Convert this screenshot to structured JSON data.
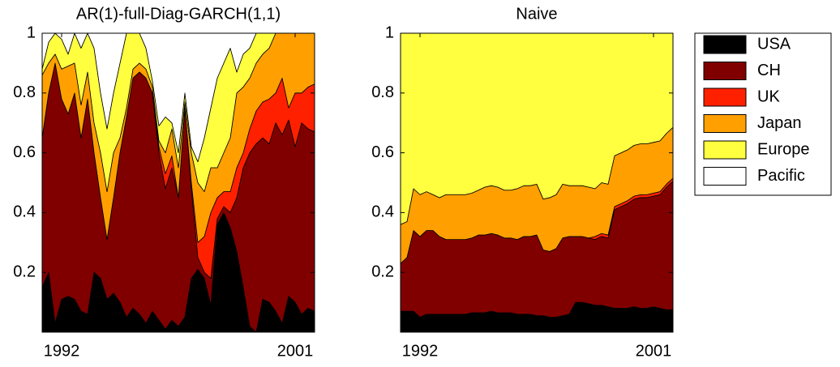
{
  "chart_data": [
    {
      "type": "stacked-area",
      "title": "AR(1)-full-Diag-GARCH(1,1)",
      "x": [
        1991.25,
        1991.5,
        1991.75,
        1992,
        1992.25,
        1992.5,
        1992.75,
        1993,
        1993.25,
        1993.5,
        1993.75,
        1994,
        1994.25,
        1994.5,
        1994.75,
        1995,
        1995.25,
        1995.5,
        1995.75,
        1996,
        1996.25,
        1996.5,
        1996.75,
        1997,
        1997.25,
        1997.5,
        1997.75,
        1998,
        1998.25,
        1998.5,
        1998.75,
        1999,
        1999.25,
        1999.5,
        1999.75,
        2000,
        2000.25,
        2000.5,
        2000.75,
        2001,
        2001.25,
        2001.5,
        2001.75
      ],
      "xlim": [
        1991.25,
        2001.75
      ],
      "xticks": [
        1992,
        2001
      ],
      "ylim": [
        0,
        1
      ],
      "yticks": [
        0.2,
        0.4,
        0.6,
        0.8,
        1
      ],
      "series": [
        {
          "name": "USA",
          "color": "#000000",
          "values": [
            0.15,
            0.2,
            0.03,
            0.11,
            0.12,
            0.11,
            0.07,
            0.06,
            0.2,
            0.18,
            0.11,
            0.13,
            0.1,
            0.05,
            0.08,
            0.06,
            0.03,
            0.07,
            0.04,
            0.01,
            0.04,
            0.02,
            0.05,
            0.18,
            0.21,
            0.18,
            0.09,
            0.36,
            0.4,
            0.35,
            0.27,
            0.15,
            0.02,
            0,
            0.11,
            0.1,
            0.07,
            0.03,
            0.12,
            0.1,
            0.06,
            0.08,
            0.07
          ]
        },
        {
          "name": "CH",
          "color": "#800000",
          "values": [
            0.5,
            0.6,
            0.87,
            0.67,
            0.61,
            0.69,
            0.58,
            0.72,
            0.4,
            0.27,
            0.2,
            0.32,
            0.5,
            0.67,
            0.77,
            0.81,
            0.82,
            0.73,
            0.56,
            0.47,
            0.51,
            0.43,
            0.7,
            0.3,
            0.04,
            0.02,
            0.09,
            0.02,
            0.02,
            0.05,
            0.18,
            0.4,
            0.58,
            0.63,
            0.54,
            0.53,
            0.63,
            0.63,
            0.59,
            0.52,
            0.64,
            0.6,
            0.6
          ]
        },
        {
          "name": "UK",
          "color": "#ff2000",
          "values": [
            0,
            0,
            0,
            0,
            0,
            0,
            0,
            0,
            0,
            0,
            0,
            0,
            0,
            0,
            0,
            0,
            0,
            0,
            0.02,
            0.05,
            0.04,
            0,
            0,
            0.02,
            0.05,
            0.12,
            0.22,
            0.07,
            0.05,
            0.07,
            0.1,
            0.05,
            0.08,
            0.11,
            0.12,
            0.15,
            0.1,
            0.19,
            0.04,
            0.18,
            0.1,
            0.14,
            0.16
          ]
        },
        {
          "name": "Japan",
          "color": "#ffa000",
          "values": [
            0.21,
            0.1,
            0.03,
            0.1,
            0.16,
            0.1,
            0.11,
            0.09,
            0.1,
            0.15,
            0.16,
            0.15,
            0.05,
            0.03,
            0.03,
            0.03,
            0.03,
            0.02,
            0.02,
            0.07,
            0.09,
            0.1,
            0.02,
            0.1,
            0.2,
            0.15,
            0.15,
            0.1,
            0.13,
            0.18,
            0.25,
            0.22,
            0.17,
            0.16,
            0.16,
            0.17,
            0.2,
            0.15,
            0.25,
            0.2,
            0.2,
            0.18,
            0.17
          ]
        },
        {
          "name": "Europe",
          "color": "#ffff40",
          "values": [
            0.02,
            0.07,
            0.07,
            0.1,
            0.04,
            0.1,
            0.19,
            0.13,
            0.25,
            0.2,
            0.21,
            0.2,
            0.25,
            0.25,
            0.12,
            0.1,
            0.07,
            0.02,
            0.05,
            0.12,
            0.02,
            0.05,
            0.03,
            0.02,
            0.07,
            0.18,
            0.2,
            0.3,
            0.3,
            0.3,
            0.07,
            0.11,
            0.1,
            0.1,
            0.07,
            0.05,
            0,
            0,
            0,
            0,
            0,
            0,
            0
          ]
        },
        {
          "name": "Pacific",
          "color": "#ffffff",
          "values": [
            0.12,
            0.03,
            0,
            0.02,
            0.07,
            0,
            0.05,
            0,
            0.05,
            0.2,
            0.32,
            0.2,
            0.1,
            0,
            0,
            0,
            0.05,
            0.16,
            0.31,
            0.28,
            0.3,
            0.4,
            0.2,
            0.38,
            0.43,
            0.35,
            0.25,
            0.15,
            0.1,
            0.05,
            0.13,
            0.07,
            0.05,
            0,
            0,
            0,
            0,
            0,
            0,
            0,
            0,
            0,
            0
          ]
        }
      ]
    },
    {
      "type": "stacked-area",
      "title": "Naive",
      "x": [
        1991.25,
        1991.5,
        1991.75,
        1992,
        1992.25,
        1992.5,
        1992.75,
        1993,
        1993.25,
        1993.5,
        1993.75,
        1994,
        1994.25,
        1994.5,
        1994.75,
        1995,
        1995.25,
        1995.5,
        1995.75,
        1996,
        1996.25,
        1996.5,
        1996.75,
        1997,
        1997.25,
        1997.5,
        1997.75,
        1998,
        1998.25,
        1998.5,
        1998.75,
        1999,
        1999.25,
        1999.5,
        1999.75,
        2000,
        2000.25,
        2000.5,
        2000.75,
        2001,
        2001.25,
        2001.5,
        2001.75
      ],
      "xlim": [
        1991.25,
        2001.75
      ],
      "xticks": [
        1992,
        2001
      ],
      "ylim": [
        0,
        1
      ],
      "yticks": [
        0.2,
        0.4,
        0.6,
        0.8,
        1
      ],
      "series": [
        {
          "color": "#000000",
          "values": [
            0.07,
            0.07,
            0.07,
            0.05,
            0.06,
            0.06,
            0.06,
            0.06,
            0.06,
            0.06,
            0.06,
            0.065,
            0.065,
            0.065,
            0.07,
            0.065,
            0.065,
            0.065,
            0.06,
            0.06,
            0.06,
            0.055,
            0.055,
            0.05,
            0.05,
            0.055,
            0.06,
            0.1,
            0.1,
            0.095,
            0.09,
            0.09,
            0.085,
            0.08,
            0.08,
            0.08,
            0.085,
            0.08,
            0.08,
            0.085,
            0.08,
            0.075,
            0.075
          ]
        },
        {
          "color": "#800000",
          "values": [
            0.16,
            0.18,
            0.27,
            0.27,
            0.28,
            0.28,
            0.26,
            0.25,
            0.25,
            0.25,
            0.25,
            0.25,
            0.26,
            0.26,
            0.26,
            0.26,
            0.25,
            0.25,
            0.25,
            0.26,
            0.26,
            0.27,
            0.22,
            0.22,
            0.23,
            0.26,
            0.26,
            0.22,
            0.22,
            0.22,
            0.22,
            0.23,
            0.23,
            0.33,
            0.34,
            0.35,
            0.36,
            0.37,
            0.37,
            0.37,
            0.38,
            0.41,
            0.43
          ]
        },
        {
          "color": "#ff2000",
          "values": [
            0,
            0,
            0,
            0,
            0,
            0,
            0,
            0,
            0,
            0,
            0,
            0,
            0,
            0,
            0,
            0,
            0,
            0,
            0,
            0,
            0,
            0,
            0,
            0,
            0,
            0,
            0,
            0,
            0,
            0,
            0.01,
            0.01,
            0.01,
            0.01,
            0.01,
            0.01,
            0.01,
            0.01,
            0.01,
            0.01,
            0.01,
            0.01,
            0.01
          ]
        },
        {
          "color": "#ffa000",
          "values": [
            0.13,
            0.12,
            0.14,
            0.14,
            0.13,
            0.12,
            0.13,
            0.15,
            0.15,
            0.15,
            0.15,
            0.15,
            0.15,
            0.16,
            0.16,
            0.16,
            0.16,
            0.16,
            0.17,
            0.17,
            0.17,
            0.17,
            0.17,
            0.18,
            0.18,
            0.18,
            0.17,
            0.17,
            0.17,
            0.17,
            0.16,
            0.17,
            0.17,
            0.17,
            0.17,
            0.17,
            0.17,
            0.17,
            0.17,
            0.17,
            0.17,
            0.17,
            0.17
          ]
        },
        {
          "color": "#ffff40",
          "values": [
            0.64,
            0.63,
            0.52,
            0.54,
            0.53,
            0.54,
            0.55,
            0.54,
            0.54,
            0.54,
            0.54,
            0.535,
            0.525,
            0.515,
            0.51,
            0.515,
            0.525,
            0.525,
            0.52,
            0.51,
            0.51,
            0.505,
            0.555,
            0.55,
            0.54,
            0.505,
            0.51,
            0.51,
            0.51,
            0.515,
            0.52,
            0.5,
            0.505,
            0.41,
            0.4,
            0.39,
            0.375,
            0.37,
            0.37,
            0.365,
            0.36,
            0.335,
            0.315
          ]
        },
        {
          "color": "#ffffff",
          "values": [
            0,
            0,
            0,
            0,
            0,
            0,
            0,
            0,
            0,
            0,
            0,
            0,
            0,
            0,
            0,
            0,
            0,
            0,
            0,
            0,
            0,
            0,
            0,
            0,
            0,
            0,
            0,
            0,
            0,
            0,
            0,
            0,
            0,
            0,
            0,
            0,
            0,
            0,
            0,
            0,
            0,
            0,
            0
          ]
        }
      ]
    }
  ]
}
